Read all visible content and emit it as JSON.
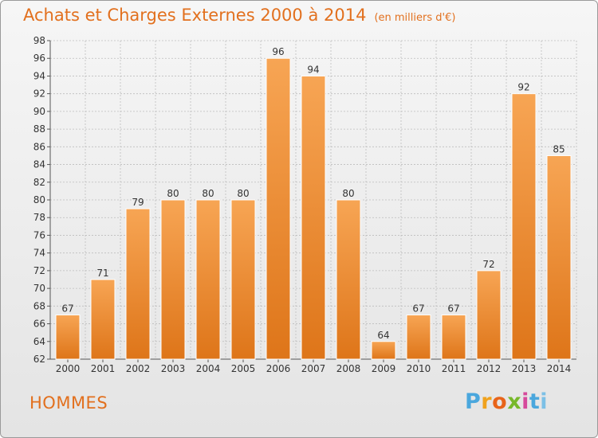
{
  "header": {
    "title": "Achats et Charges Externes 2000 à 2014",
    "unit": "(en milliers d'€)"
  },
  "footer": {
    "label": "HOMMES",
    "logo_letters": [
      "P",
      "r",
      "o",
      "x",
      "i",
      "t",
      "i"
    ]
  },
  "colors": {
    "title": "#e2701e",
    "bar_top": "#f7a554",
    "bar_bottom": "#de7519",
    "grid": "#bdbdbd"
  },
  "chart_data": {
    "type": "bar",
    "title": "Achats et Charges Externes 2000 à 2014",
    "subtitle": "(en milliers d'€)",
    "categories": [
      "2000",
      "2001",
      "2002",
      "2003",
      "2004",
      "2005",
      "2006",
      "2007",
      "2008",
      "2009",
      "2010",
      "2011",
      "2012",
      "2013",
      "2014"
    ],
    "values": [
      67,
      71,
      79,
      80,
      80,
      80,
      96,
      94,
      80,
      64,
      67,
      67,
      72,
      92,
      85
    ],
    "ylim": [
      62,
      98
    ],
    "yticks": [
      62,
      64,
      66,
      68,
      70,
      72,
      74,
      76,
      78,
      80,
      82,
      84,
      86,
      88,
      90,
      92,
      94,
      96,
      98
    ],
    "grid": true,
    "data_labels": true
  }
}
